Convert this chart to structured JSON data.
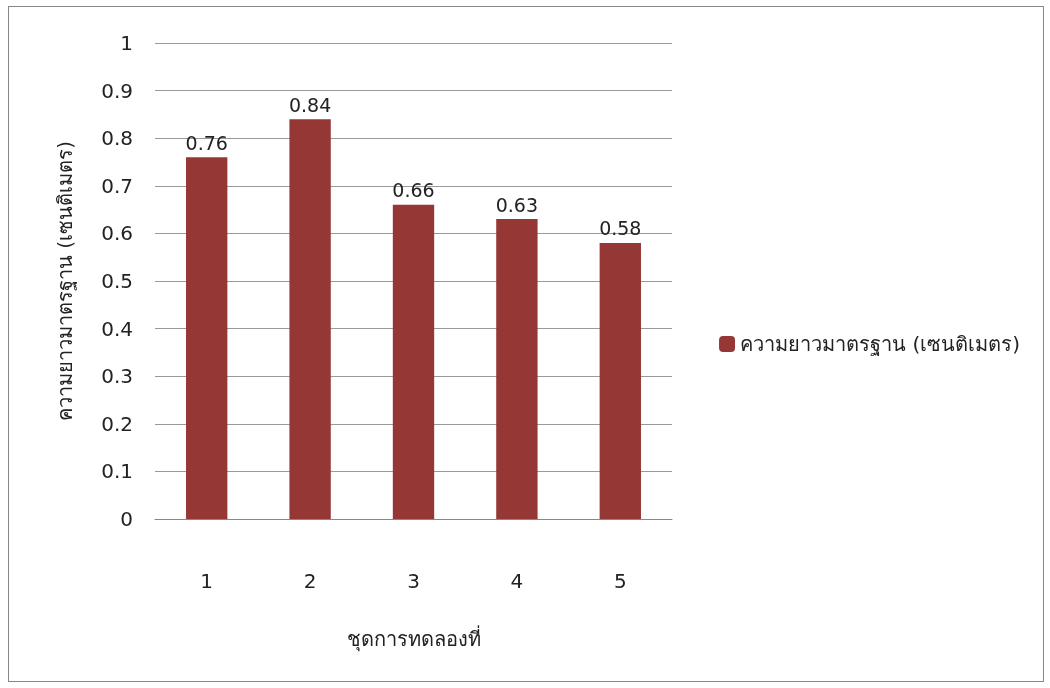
{
  "chart_data": {
    "type": "bar",
    "categories": [
      "1",
      "2",
      "3",
      "4",
      "5"
    ],
    "series": [
      {
        "name": "ความยาวมาตรฐาน (เซนติเมตร)",
        "color": "#953735",
        "values": [
          0.76,
          0.84,
          0.66,
          0.63,
          0.58
        ]
      }
    ],
    "xlabel": "ชุดการทดลองที่",
    "ylabel": "ความยาวมาตรฐาน (เซนติเมตร)",
    "ylim": [
      0,
      1
    ],
    "yticks": [
      0,
      0.1,
      0.2,
      0.3,
      0.4,
      0.5,
      0.6,
      0.7,
      0.8,
      0.9,
      1
    ],
    "grid": "y",
    "legend": "right",
    "data_labels": true
  }
}
